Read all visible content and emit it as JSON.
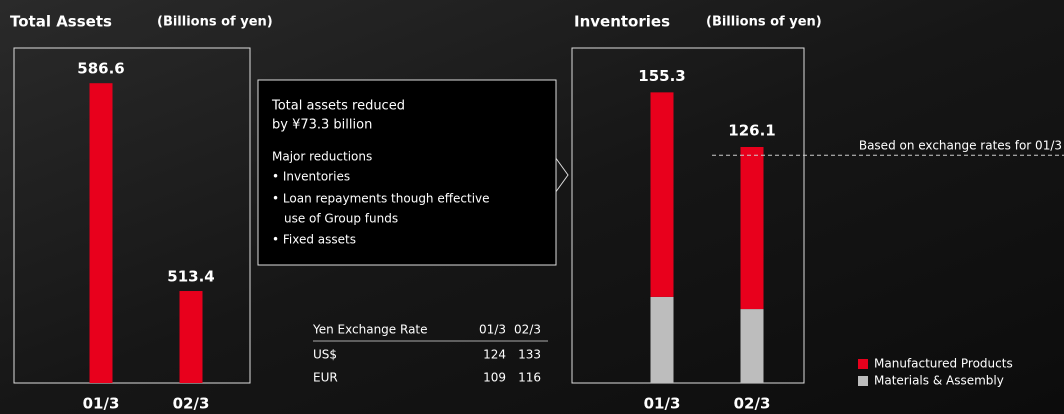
{
  "chart_data": [
    {
      "type": "bar",
      "title": "Total Assets",
      "subtitle": "(Billions of yen)",
      "categories": [
        "01/3",
        "02/3"
      ],
      "values": [
        586.6,
        513.4
      ],
      "color": "#e8001c",
      "ylim": [
        481,
        599
      ]
    },
    {
      "type": "bar",
      "title": "Inventories",
      "subtitle": "(Billions of yen)",
      "categories": [
        "01/3",
        "02/3"
      ],
      "stacked": true,
      "series": [
        {
          "name": "Materials & Assembly",
          "color": "#bdbdbd",
          "values": [
            46,
            39.5
          ]
        },
        {
          "name": "Manufactured Products",
          "color": "#e8001c",
          "values": [
            109.3,
            86.6
          ]
        }
      ],
      "totals": [
        155.3,
        126.1
      ],
      "reference_line": {
        "label": "Based on exchange rates for 01/3",
        "value": 121.7
      },
      "ylim": [
        0,
        179
      ]
    }
  ],
  "callout": {
    "heading": [
      "Total assets reduced",
      "by ¥73.3 billion"
    ],
    "subheading": "Major reductions",
    "items": [
      "• Inventories",
      "• Loan repayments though effective",
      "use of Group funds",
      "• Fixed assets"
    ]
  },
  "exchange_table": {
    "header": [
      "Yen Exchange Rate",
      "01/3",
      "02/3"
    ],
    "rows": [
      [
        "US$",
        "124",
        "133"
      ],
      [
        "EUR",
        "109",
        "116"
      ]
    ]
  }
}
